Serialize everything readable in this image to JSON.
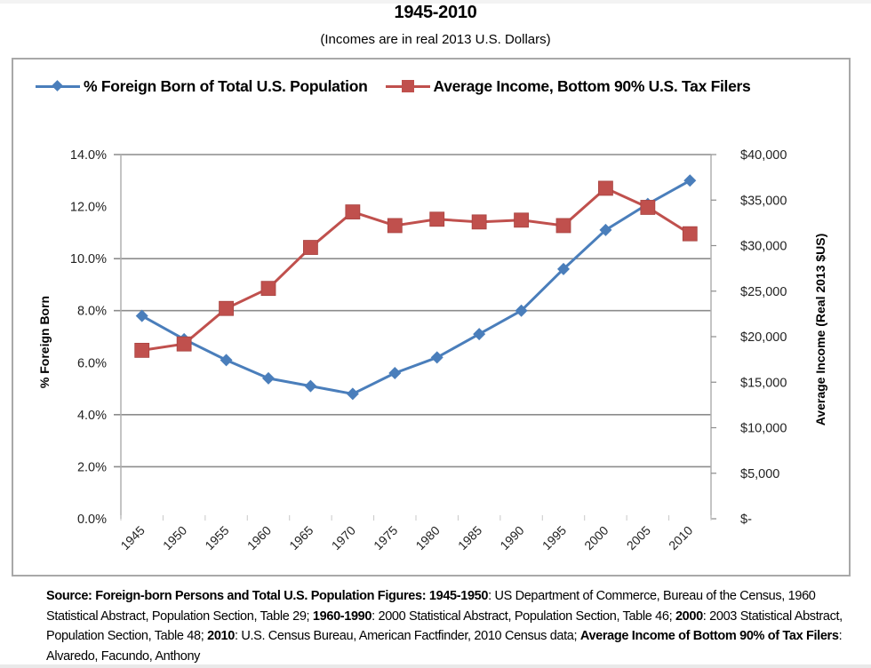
{
  "header": {
    "title": "1945-2010",
    "subtitle": "(Incomes are in real 2013 U.S. Dollars)"
  },
  "colors": {
    "foreign_born": "#4a7ebb",
    "income": "#c0504d",
    "gridline": "#8c8c8c",
    "axis": "#b0b0b0",
    "frame": "#a8a8a8"
  },
  "legend": {
    "items": [
      {
        "label": "% Foreign Born of Total U.S. Population",
        "marker": "diamond"
      },
      {
        "label": "Average Income, Bottom 90% U.S. Tax Filers",
        "marker": "square"
      }
    ]
  },
  "source": {
    "segments": [
      {
        "text": "Source: Foreign-born Persons and Total U.S. Population Figures: 1945-1950",
        "bold": true
      },
      {
        "text": ": US Department of Commerce, Bureau of the Census, 1960 Statistical Abstract, Population Section, Table 29; ",
        "bold": false
      },
      {
        "text": "1960-1990",
        "bold": true
      },
      {
        "text": ": 2000 Statistical Abstract, Population Section, Table 46; ",
        "bold": false
      },
      {
        "text": "2000",
        "bold": true
      },
      {
        "text": ": 2003 Statistical Abstract, Population Section, Table 48; ",
        "bold": false
      },
      {
        "text": "2010",
        "bold": true
      },
      {
        "text": ": U.S. Census Bureau, American Factfinder, 2010 Census data; ",
        "bold": false
      },
      {
        "text": "Average Income of Bottom 90% of Tax Filers",
        "bold": true
      },
      {
        "text": ": Alvaredo, Facundo, Anthony",
        "bold": false
      }
    ]
  },
  "chart_data": {
    "type": "line",
    "title": "1945-2010",
    "subtitle": "(Incomes are in real 2013 U.S. Dollars)",
    "x": [
      "1945",
      "1950",
      "1955",
      "1960",
      "1965",
      "1970",
      "1975",
      "1980",
      "1985",
      "1990",
      "1995",
      "2000",
      "2005",
      "2010"
    ],
    "xlabel": "",
    "series": [
      {
        "name": "% Foreign Born of Total U.S. Population",
        "axis": "left",
        "marker": "diamond",
        "values": [
          7.8,
          6.9,
          6.1,
          5.4,
          5.1,
          4.8,
          5.6,
          6.2,
          7.1,
          8.0,
          9.6,
          11.1,
          12.1,
          13.0
        ]
      },
      {
        "name": "Average Income, Bottom 90% U.S. Tax Filers",
        "axis": "right",
        "marker": "square",
        "values": [
          18500,
          19200,
          23100,
          25300,
          29800,
          33700,
          32200,
          32900,
          32600,
          32800,
          32200,
          36300,
          34200,
          31300
        ]
      }
    ],
    "y_left": {
      "label": "% Foreign Born",
      "range": [
        0,
        14
      ],
      "ticks": [
        0,
        2,
        4,
        6,
        8,
        10,
        12,
        14
      ],
      "tick_labels": [
        "0.0%",
        "2.0%",
        "4.0%",
        "6.0%",
        "8.0%",
        "10.0%",
        "12.0%",
        "14.0%"
      ],
      "gridlines_visible": [
        2,
        4,
        8,
        10,
        14
      ]
    },
    "y_right": {
      "label": "Average Income (Real 2013 $US)",
      "range": [
        0,
        40000
      ],
      "ticks": [
        0,
        5000,
        10000,
        15000,
        20000,
        25000,
        30000,
        35000,
        40000
      ],
      "tick_labels": [
        "$-",
        "$5,000",
        "$10,000",
        "$15,000",
        "$20,000",
        "$25,000",
        "$30,000",
        "$35,000",
        "$40,000"
      ]
    },
    "legend_position": "top",
    "grid": true
  }
}
